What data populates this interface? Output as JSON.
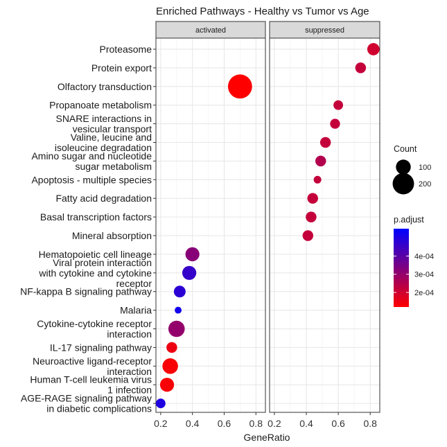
{
  "chart_data": {
    "type": "scatter",
    "title": "Enriched Pathways - Healthy vs Tumor vs Age",
    "xlabel": "GeneRatio",
    "ylabel": "",
    "xlim": [
      0.17,
      0.86
    ],
    "x_ticks": [
      0.2,
      0.4,
      0.6,
      0.8
    ],
    "x_tick_labels": [
      "0.2",
      "0.4",
      "0.6",
      "0.8"
    ],
    "grid": true,
    "facets": [
      "activated",
      "suppressed"
    ],
    "pathways": [
      [
        "Proteasome"
      ],
      [
        "Protein export"
      ],
      [
        "Olfactory transduction"
      ],
      [
        "Propanoate metabolism"
      ],
      [
        "SNARE interactions in",
        "vesicular transport"
      ],
      [
        "Valine, leucine and",
        "isoleucine degradation"
      ],
      [
        "Amino sugar and nucleotide",
        "sugar metabolism"
      ],
      [
        "Apoptosis - multiple species"
      ],
      [
        "Fatty acid degradation"
      ],
      [
        "Basal transcription factors"
      ],
      [
        "Mineral absorption"
      ],
      [
        "Hematopoietic cell lineage"
      ],
      [
        "Viral protein interaction",
        "with cytokine and cytokine",
        "receptor"
      ],
      [
        "NF-kappa B signaling pathway"
      ],
      [
        "Malaria"
      ],
      [
        "Cytokine-cytokine receptor",
        "interaction"
      ],
      [
        "IL-17 signaling pathway"
      ],
      [
        "Neuroactive ligand-receptor",
        "interaction"
      ],
      [
        "Human T-cell leukemia virus",
        "1 infection"
      ],
      [
        "AGE-RAGE signaling pathway",
        "in diabetic complications"
      ]
    ],
    "points": [
      {
        "pathway": 0,
        "facet": 1,
        "x": 0.82,
        "count": 70,
        "p_adjust": 0.0002
      },
      {
        "pathway": 1,
        "facet": 1,
        "x": 0.74,
        "count": 55,
        "p_adjust": 0.00022
      },
      {
        "pathway": 2,
        "facet": 0,
        "x": 0.7,
        "count": 250,
        "p_adjust": 0.00012
      },
      {
        "pathway": 3,
        "facet": 1,
        "x": 0.6,
        "count": 45,
        "p_adjust": 0.00022
      },
      {
        "pathway": 4,
        "facet": 1,
        "x": 0.58,
        "count": 48,
        "p_adjust": 0.00022
      },
      {
        "pathway": 5,
        "facet": 1,
        "x": 0.52,
        "count": 55,
        "p_adjust": 0.00022
      },
      {
        "pathway": 6,
        "facet": 1,
        "x": 0.49,
        "count": 55,
        "p_adjust": 0.00025
      },
      {
        "pathway": 7,
        "facet": 1,
        "x": 0.47,
        "count": 30,
        "p_adjust": 0.00022
      },
      {
        "pathway": 8,
        "facet": 1,
        "x": 0.44,
        "count": 55,
        "p_adjust": 0.00022
      },
      {
        "pathway": 9,
        "facet": 1,
        "x": 0.43,
        "count": 55,
        "p_adjust": 0.00022
      },
      {
        "pathway": 10,
        "facet": 1,
        "x": 0.41,
        "count": 55,
        "p_adjust": 0.00022
      },
      {
        "pathway": 11,
        "facet": 0,
        "x": 0.4,
        "count": 90,
        "p_adjust": 0.00032
      },
      {
        "pathway": 12,
        "facet": 0,
        "x": 0.38,
        "count": 90,
        "p_adjust": 0.00046
      },
      {
        "pathway": 13,
        "facet": 0,
        "x": 0.32,
        "count": 65,
        "p_adjust": 0.00048
      },
      {
        "pathway": 14,
        "facet": 0,
        "x": 0.31,
        "count": 25,
        "p_adjust": 0.00052
      },
      {
        "pathway": 15,
        "facet": 0,
        "x": 0.3,
        "count": 120,
        "p_adjust": 0.0003
      },
      {
        "pathway": 16,
        "facet": 0,
        "x": 0.27,
        "count": 55,
        "p_adjust": 0.00015
      },
      {
        "pathway": 17,
        "facet": 0,
        "x": 0.26,
        "count": 110,
        "p_adjust": 0.00013
      },
      {
        "pathway": 18,
        "facet": 0,
        "x": 0.24,
        "count": 90,
        "p_adjust": 0.00013
      },
      {
        "pathway": 19,
        "facet": 0,
        "x": 0.2,
        "count": 45,
        "p_adjust": 0.0005
      }
    ],
    "legend": {
      "placement": "right",
      "size_title": "Count",
      "size_values": [
        100,
        200
      ],
      "size_labels": [
        "100",
        "200"
      ],
      "color_title": "p.adjust",
      "color_low": "#FF0000",
      "color_high": "#0000FF",
      "color_range": [
        0.00012,
        0.00055
      ],
      "color_ticks": [
        0.0002,
        0.0003,
        0.0004
      ],
      "color_tick_labels": [
        "2e-04",
        "3e-04",
        "4e-04"
      ]
    }
  }
}
